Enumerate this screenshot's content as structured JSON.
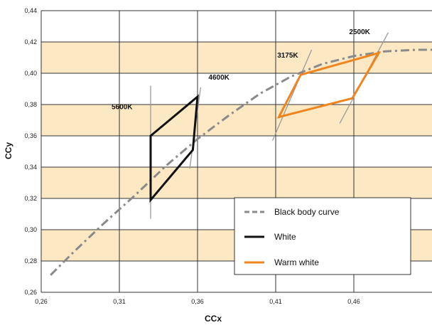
{
  "chart_data": {
    "type": "line",
    "xlabel": "CCx",
    "ylabel": "CCy",
    "xlim": [
      0.26,
      0.51
    ],
    "ylim": [
      0.26,
      0.44
    ],
    "x_ticks": [
      "0,26",
      "0,31",
      "0,36",
      "0,41",
      "0,46"
    ],
    "x_tick_values": [
      0.26,
      0.31,
      0.36,
      0.41,
      0.46
    ],
    "y_ticks": [
      "0,26",
      "0,28",
      "0,30",
      "0,32",
      "0,34",
      "0,36",
      "0,38",
      "0,40",
      "0,42",
      "0,44"
    ],
    "y_tick_values": [
      0.26,
      0.28,
      0.3,
      0.32,
      0.34,
      0.36,
      0.38,
      0.4,
      0.42,
      0.44
    ],
    "grid": true,
    "band_color": "#fce9c4",
    "band_ranges": [
      [
        0.28,
        0.3
      ],
      [
        0.32,
        0.34
      ],
      [
        0.36,
        0.38
      ],
      [
        0.4,
        0.42
      ]
    ],
    "legend_position": "bottom-right",
    "series": [
      {
        "name": "Black body curve",
        "kind": "curve",
        "color": "#8a8a8a",
        "style": "dash-dot",
        "x": [
          0.266,
          0.28,
          0.3,
          0.32,
          0.34,
          0.36,
          0.38,
          0.4,
          0.42,
          0.44,
          0.46,
          0.48,
          0.5,
          0.51
        ],
        "y": [
          0.271,
          0.285,
          0.304,
          0.322,
          0.341,
          0.358,
          0.373,
          0.387,
          0.398,
          0.406,
          0.411,
          0.414,
          0.415,
          0.415
        ]
      },
      {
        "name": "White",
        "kind": "polygon",
        "color": "#111111",
        "x": [
          0.33,
          0.36,
          0.357,
          0.33
        ],
        "y": [
          0.36,
          0.385,
          0.351,
          0.319
        ]
      },
      {
        "name": "Warm white",
        "kind": "polygon",
        "color": "#f0841f",
        "x": [
          0.426,
          0.476,
          0.459,
          0.412
        ],
        "y": [
          0.399,
          0.413,
          0.384,
          0.372
        ]
      }
    ],
    "cct_lines": [
      {
        "label": "5600K",
        "color": "#999999",
        "x": [
          0.33,
          0.33
        ],
        "y": [
          0.307,
          0.392
        ]
      },
      {
        "label": "4600K",
        "color": "#999999",
        "x": [
          0.355,
          0.362
        ],
        "y": [
          0.339,
          0.391
        ]
      },
      {
        "label": "3175K",
        "color": "#999999",
        "x": [
          0.408,
          0.433
        ],
        "y": [
          0.357,
          0.415
        ]
      },
      {
        "label": "2500K",
        "color": "#999999",
        "x": [
          0.451,
          0.482
        ],
        "y": [
          0.368,
          0.426
        ]
      }
    ],
    "annotations": [
      {
        "text": "5600K",
        "x": 0.305,
        "y": 0.377
      },
      {
        "text": "4600K",
        "x": 0.367,
        "y": 0.396
      },
      {
        "text": "3175K",
        "x": 0.411,
        "y": 0.41
      },
      {
        "text": "2500K",
        "x": 0.457,
        "y": 0.425
      }
    ]
  }
}
